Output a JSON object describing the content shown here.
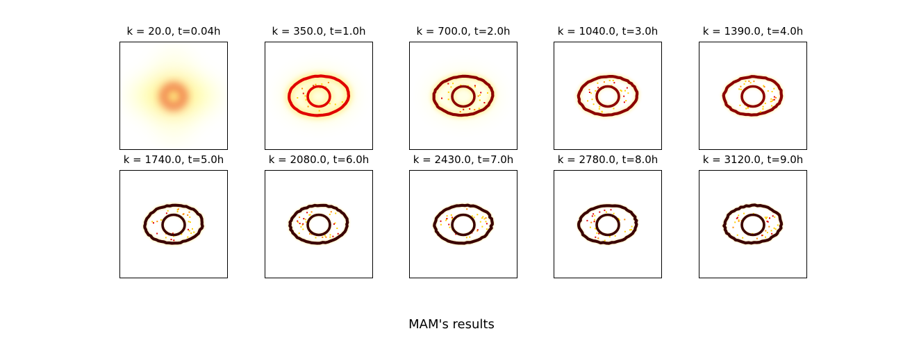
{
  "figure": {
    "suptitle": "MAM's results",
    "colormap": [
      "#ffffff",
      "#ffff66",
      "#ffd000",
      "#ff8a00",
      "#e00000",
      "#8b0000",
      "#3a0000"
    ]
  },
  "chart_data": {
    "type": "heatmap",
    "suptitle": "MAM's results",
    "grid": false,
    "panels": [
      {
        "title": "k = 20.0, t=0.04h",
        "k": 20.0,
        "t_hours": 0.04,
        "sharpness": 0.05
      },
      {
        "title": "k = 350.0, t=1.0h",
        "k": 350.0,
        "t_hours": 1.0,
        "sharpness": 0.35
      },
      {
        "title": "k = 700.0, t=2.0h",
        "k": 700.0,
        "t_hours": 2.0,
        "sharpness": 0.55
      },
      {
        "title": "k = 1040.0, t=3.0h",
        "k": 1040.0,
        "t_hours": 3.0,
        "sharpness": 0.7
      },
      {
        "title": "k = 1390.0, t=4.0h",
        "k": 1390.0,
        "t_hours": 4.0,
        "sharpness": 0.8
      },
      {
        "title": "k = 1740.0, t=5.0h",
        "k": 1740.0,
        "t_hours": 5.0,
        "sharpness": 0.88
      },
      {
        "title": "k = 2080.0, t=6.0h",
        "k": 2080.0,
        "t_hours": 6.0,
        "sharpness": 0.92
      },
      {
        "title": "k = 2430.0, t=7.0h",
        "k": 2430.0,
        "t_hours": 7.0,
        "sharpness": 0.95
      },
      {
        "title": "k = 2780.0, t=8.0h",
        "k": 2780.0,
        "t_hours": 8.0,
        "sharpness": 0.97
      },
      {
        "title": "k = 3120.0, t=9.0h",
        "k": 3120.0,
        "t_hours": 9.0,
        "sharpness": 1.0
      }
    ]
  }
}
